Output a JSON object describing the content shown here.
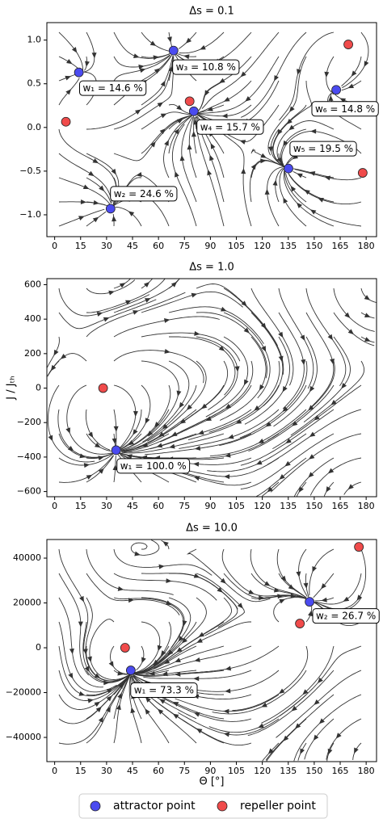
{
  "chart_data": [
    {
      "type": "scatter",
      "title": "Δs = 0.1",
      "xlim": [
        -4.5,
        186
      ],
      "xticks": [
        0,
        15,
        30,
        45,
        60,
        75,
        90,
        105,
        120,
        135,
        150,
        165,
        180
      ],
      "ylim": [
        -1.25,
        1.2
      ],
      "yticks": [
        {
          "value": -1,
          "label": "−1.0"
        },
        {
          "value": -0.5,
          "label": "−0.5"
        },
        {
          "value": 0,
          "label": "0.0"
        },
        0.5,
        {
          "value": 1,
          "label": "1.0"
        }
      ],
      "attractors": {
        "x": [
          14,
          32.3,
          68.7,
          80.4,
          135.1,
          162.7
        ],
        "y": [
          0.63,
          -0.93,
          0.88,
          0.185,
          -0.47,
          0.43
        ],
        "labels": [
          "w₁ = 14.6 %",
          "w₂ = 24.6 %",
          "w₃ = 10.8 %",
          "w₄ = 15.7 %",
          "w₅ = 19.5 %",
          "w₆ = 14.8 %"
        ]
      },
      "repellers": {
        "x": [
          6.5,
          78,
          169.7,
          178
        ],
        "y": [
          0.065,
          0.3,
          0.95,
          -0.52
        ]
      }
    },
    {
      "type": "scatter",
      "title": "Δs = 1.0",
      "y_label": "J / Jₜₕ",
      "xlim": [
        -4.5,
        186
      ],
      "xticks": [
        0,
        15,
        30,
        45,
        60,
        75,
        90,
        105,
        120,
        135,
        150,
        165,
        180
      ],
      "ylim": [
        -630,
        635
      ],
      "yticks": [
        {
          "value": -600,
          "label": "−600"
        },
        {
          "value": -400,
          "label": "−400"
        },
        {
          "value": -200,
          "label": "−200"
        },
        0,
        200,
        400,
        600
      ],
      "attractors": {
        "x": [
          35.5
        ],
        "y": [
          -360
        ],
        "labels": [
          "w₁ = 100.0 %"
        ]
      },
      "repellers": {
        "x": [
          28
        ],
        "y": [
          0
        ]
      }
    },
    {
      "type": "scatter",
      "title": "Δs = 10.0",
      "x_label": "Θ [°]",
      "xlim": [
        -4.5,
        186
      ],
      "xticks": [
        0,
        15,
        30,
        45,
        60,
        75,
        90,
        105,
        120,
        135,
        150,
        165,
        180
      ],
      "ylim": [
        -50800,
        48300
      ],
      "yticks": [
        {
          "value": -40000,
          "label": "−40000"
        },
        {
          "value": -20000,
          "label": "−20000"
        },
        0,
        20000,
        40000
      ],
      "attractors": {
        "x": [
          44,
          147.3
        ],
        "y": [
          -10100,
          20500
        ],
        "labels": [
          "w₁ = 73.3 %",
          "w₂ = 26.7 %"
        ]
      },
      "repellers": {
        "x": [
          40.7,
          141.7,
          175.8
        ],
        "y": [
          0,
          10800,
          45000
        ]
      }
    }
  ],
  "legend": {
    "attractor": {
      "name": "attractor point",
      "color": "#4b4bf0"
    },
    "repeller": {
      "name": "repeller point",
      "color": "#f04b4b"
    }
  }
}
